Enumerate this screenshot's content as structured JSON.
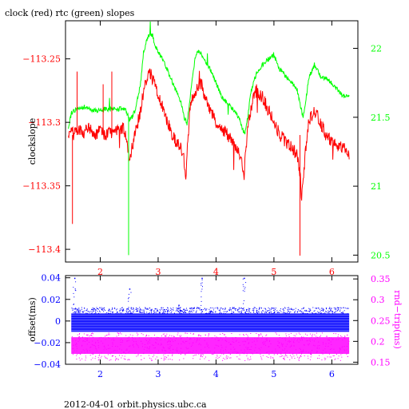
{
  "title": "clock (red) rtc (green) slopes",
  "footer": "2012-04-01  orbit.physics.ubc.ca",
  "colors": {
    "clock": "#ff0000",
    "rtc": "#00ff00",
    "offset": "#0000ff",
    "rnd_trip": "#ff00ff",
    "axis": "#000000"
  },
  "chart_data": [
    {
      "type": "line",
      "title": "clock (red) rtc (green) slopes",
      "xlim": [
        1.4,
        6.45
      ],
      "x_ticks": [
        2,
        3,
        4,
        5,
        6
      ],
      "x_tick_labels": [
        "2",
        "3",
        "4",
        "5",
        "6"
      ],
      "ylabel": "clockslope",
      "ylim": [
        -113.41,
        -113.22
      ],
      "y_ticks": [
        -113.25,
        -113.3,
        -113.35,
        -113.4
      ],
      "y_tick_labels": [
        "−113.25",
        "−113.3",
        "−113.35",
        "−113.4"
      ],
      "ylabel_right": "",
      "ylim_right": [
        20.45,
        22.2
      ],
      "y_ticks_right": [
        22,
        21.5,
        21,
        20.5
      ],
      "y_tick_labels_right": [
        "22",
        "21.5",
        "21",
        "20.5"
      ],
      "series": [
        {
          "name": "clock (red)",
          "axis": "left",
          "x": [
            1.45,
            1.5,
            1.55,
            1.6,
            1.7,
            1.8,
            1.9,
            2.0,
            2.1,
            2.2,
            2.3,
            2.4,
            2.45,
            2.48,
            2.5,
            2.55,
            2.6,
            2.7,
            2.75,
            2.8,
            2.85,
            2.9,
            2.95,
            3.0,
            3.1,
            3.2,
            3.3,
            3.4,
            3.45,
            3.48,
            3.5,
            3.55,
            3.6,
            3.65,
            3.7,
            3.75,
            3.8,
            3.9,
            4.0,
            4.1,
            4.2,
            4.3,
            4.4,
            4.45,
            4.48,
            4.5,
            4.55,
            4.6,
            4.65,
            4.7,
            4.8,
            4.9,
            5.0,
            5.1,
            5.2,
            5.3,
            5.4,
            5.45,
            5.48,
            5.5,
            5.55,
            5.6,
            5.7,
            5.8,
            5.9,
            6.0,
            6.1,
            6.2,
            6.3
          ],
          "y": [
            -113.31,
            -113.305,
            -113.31,
            -113.305,
            -113.308,
            -113.305,
            -113.31,
            -113.307,
            -113.31,
            -113.308,
            -113.305,
            -113.305,
            -113.31,
            -113.32,
            -113.33,
            -113.32,
            -113.31,
            -113.29,
            -113.275,
            -113.265,
            -113.26,
            -113.265,
            -113.27,
            -113.28,
            -113.29,
            -113.305,
            -113.315,
            -113.32,
            -113.33,
            -113.345,
            -113.325,
            -113.29,
            -113.28,
            -113.275,
            -113.27,
            -113.27,
            -113.28,
            -113.29,
            -113.3,
            -113.305,
            -113.31,
            -113.315,
            -113.325,
            -113.33,
            -113.345,
            -113.33,
            -113.305,
            -113.29,
            -113.28,
            -113.275,
            -113.28,
            -113.29,
            -113.3,
            -113.31,
            -113.315,
            -113.32,
            -113.325,
            -113.34,
            -113.36,
            -113.35,
            -113.32,
            -113.3,
            -113.29,
            -113.3,
            -113.31,
            -113.315,
            -113.32,
            -113.32,
            -113.325
          ]
        },
        {
          "name": "rtc (green)",
          "axis": "right",
          "x": [
            1.45,
            1.5,
            1.6,
            1.7,
            1.8,
            1.9,
            2.0,
            2.1,
            2.2,
            2.3,
            2.4,
            2.45,
            2.5,
            2.55,
            2.6,
            2.7,
            2.75,
            2.8,
            2.85,
            2.9,
            2.95,
            3.0,
            3.1,
            3.2,
            3.3,
            3.4,
            3.45,
            3.5,
            3.55,
            3.6,
            3.65,
            3.7,
            3.8,
            3.9,
            4.0,
            4.1,
            4.2,
            4.3,
            4.4,
            4.45,
            4.5,
            4.55,
            4.6,
            4.7,
            4.8,
            4.9,
            5.0,
            5.1,
            5.2,
            5.3,
            5.4,
            5.45,
            5.5,
            5.55,
            5.6,
            5.7,
            5.8,
            5.9,
            6.0,
            6.1,
            6.2,
            6.3
          ],
          "y": [
            21.42,
            21.53,
            21.56,
            21.57,
            21.56,
            21.55,
            21.55,
            21.56,
            21.56,
            21.56,
            21.56,
            21.55,
            21.48,
            21.5,
            21.55,
            21.75,
            21.98,
            22.05,
            22.1,
            22.1,
            22.02,
            21.98,
            21.9,
            21.8,
            21.7,
            21.6,
            21.5,
            21.45,
            21.62,
            21.82,
            21.95,
            21.98,
            21.92,
            21.85,
            21.75,
            21.65,
            21.6,
            21.55,
            21.5,
            21.42,
            21.38,
            21.5,
            21.68,
            21.82,
            21.88,
            21.92,
            21.95,
            21.85,
            21.8,
            21.75,
            21.7,
            21.6,
            21.5,
            21.62,
            21.78,
            21.88,
            21.8,
            21.78,
            21.75,
            21.7,
            21.65,
            21.65
          ]
        }
      ],
      "notes": "dense noisy traces; values above are a smoothed approximation with the visible spikes"
    },
    {
      "type": "scatter",
      "xlim": [
        1.4,
        6.45
      ],
      "x_ticks": [
        2,
        3,
        4,
        5,
        6
      ],
      "x_tick_labels": [
        "2",
        "3",
        "4",
        "5",
        "6"
      ],
      "ylabel": "offset(ms)",
      "ylim": [
        -0.04,
        0.042
      ],
      "y_ticks": [
        0.04,
        0.02,
        0,
        -0.02,
        -0.04
      ],
      "y_tick_labels": [
        "0.04",
        "0.02",
        "0",
        "−0.02",
        "−0.04"
      ],
      "ylabel_right": "rnd−trip(ms)",
      "ylim_right": [
        0.145,
        0.358
      ],
      "y_ticks_right": [
        0.35,
        0.3,
        0.25,
        0.2,
        0.15
      ],
      "y_tick_labels_right": [
        "0.35",
        "0.3",
        "0.25",
        "0.2",
        "0.15"
      ],
      "series": [
        {
          "name": "offset",
          "axis": "left",
          "x_range": [
            1.5,
            6.3
          ],
          "band": [
            -0.01,
            0.007
          ],
          "outliers": [
            [
              1.55,
              0.04
            ],
            [
              2.5,
              0.03
            ],
            [
              3.35,
              0.015
            ],
            [
              3.75,
              0.04
            ],
            [
              4.48,
              0.04
            ]
          ]
        },
        {
          "name": "rnd-trip",
          "axis": "right",
          "x_range": [
            1.5,
            6.3
          ],
          "band": [
            0.17,
            0.21
          ]
        }
      ]
    }
  ]
}
